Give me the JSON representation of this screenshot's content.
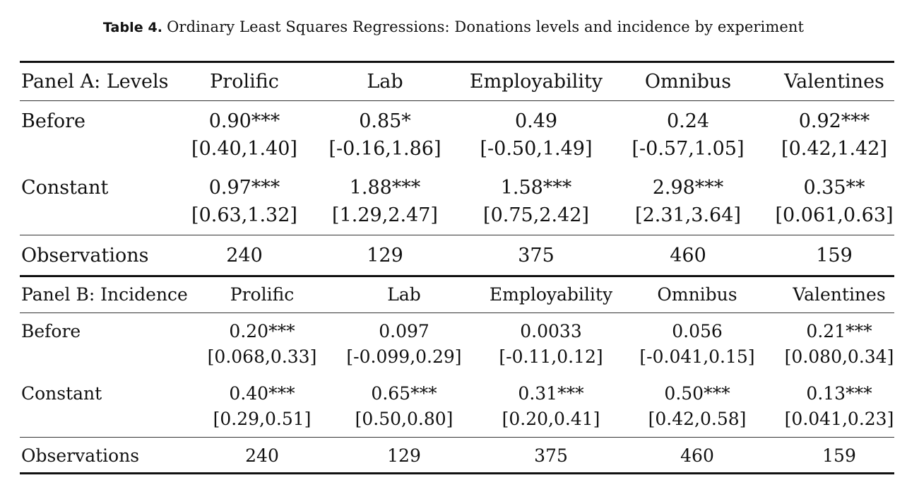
{
  "caption": {
    "label": "Table 4.",
    "text": "Ordinary Least Squares Regressions: Donations levels and incidence by experiment"
  },
  "panel_a": {
    "header": [
      "Panel A: Levels",
      "Prolific",
      "Lab",
      "Employability",
      "Omnibus",
      "Valentines"
    ],
    "before": {
      "label": "Before",
      "coef": [
        "0.90***",
        "0.85*",
        "0.49",
        "0.24",
        "0.92***"
      ],
      "ci": [
        "[0.40,1.40]",
        "[-0.16,1.86]",
        "[-0.50,1.49]",
        "[-0.57,1.05]",
        "[0.42,1.42]"
      ]
    },
    "constant": {
      "label": "Constant",
      "coef": [
        "0.97***",
        "1.88***",
        "1.58***",
        "2.98***",
        "0.35**"
      ],
      "ci": [
        "[0.63,1.32]",
        "[1.29,2.47]",
        "[0.75,2.42]",
        "[2.31,3.64]",
        "[0.061,0.63]"
      ]
    },
    "observations": {
      "label": "Observations",
      "values": [
        "240",
        "129",
        "375",
        "460",
        "159"
      ]
    }
  },
  "panel_b": {
    "header": [
      "Panel B: Incidence",
      "Prolific",
      "Lab",
      "Employability",
      "Omnibus",
      "Valentines"
    ],
    "before": {
      "label": "Before",
      "coef": [
        "0.20***",
        "0.097",
        "0.0033",
        "0.056",
        "0.21***"
      ],
      "ci": [
        "[0.068,0.33]",
        "[-0.099,0.29]",
        "[-0.11,0.12]",
        "[-0.041,0.15]",
        "[0.080,0.34]"
      ]
    },
    "constant": {
      "label": "Constant",
      "coef": [
        "0.40***",
        "0.65***",
        "0.31***",
        "0.50***",
        "0.13***"
      ],
      "ci": [
        "[0.29,0.51]",
        "[0.50,0.80]",
        "[0.20,0.41]",
        "[0.42,0.58]",
        "[0.041,0.23]"
      ]
    },
    "observations": {
      "label": "Observations",
      "values": [
        "240",
        "129",
        "375",
        "460",
        "159"
      ]
    }
  }
}
